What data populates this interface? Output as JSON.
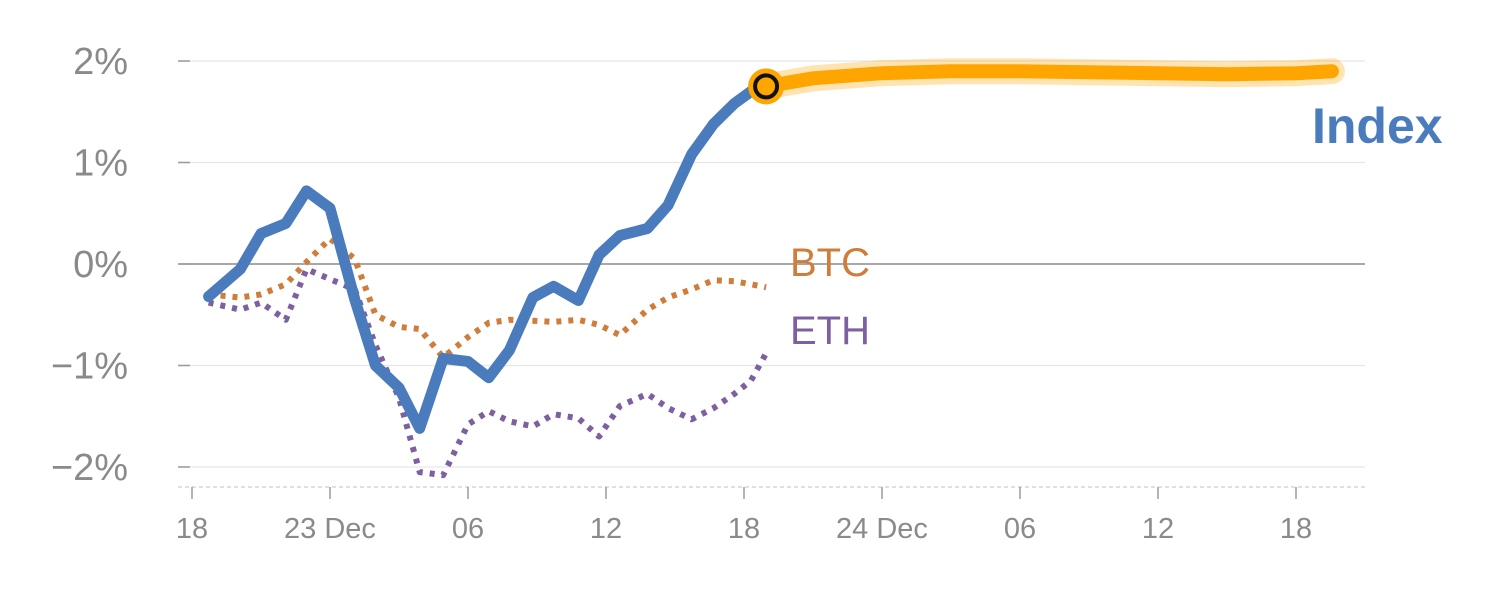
{
  "chart_data": {
    "type": "line",
    "ylim": [
      -2.2,
      2.2
    ],
    "yticks": [
      {
        "value": 2,
        "label": "2%"
      },
      {
        "value": 1,
        "label": "1%"
      },
      {
        "value": 0,
        "label": "0%"
      },
      {
        "value": -1,
        "label": "−1%"
      },
      {
        "value": -2,
        "label": "−2%"
      }
    ],
    "x_range": [
      0,
      85
    ],
    "xticks": [
      {
        "value": 0,
        "label": "18"
      },
      {
        "value": 10,
        "label": "23 Dec"
      },
      {
        "value": 20,
        "label": "06"
      },
      {
        "value": 30,
        "label": "12"
      },
      {
        "value": 40,
        "label": "18"
      },
      {
        "value": 50,
        "label": "24 Dec"
      },
      {
        "value": 60,
        "label": "06"
      },
      {
        "value": 70,
        "label": "12"
      },
      {
        "value": 80,
        "label": "18"
      }
    ],
    "grid": true,
    "series": [
      {
        "name": "Index",
        "color": "#4a7bbd",
        "style": "solid",
        "x": [
          1.2,
          3.5,
          5,
          6.8,
          8.3,
          10,
          11.8,
          13.3,
          15,
          16.5,
          18.2,
          20,
          21.5,
          23,
          24.7,
          26.2,
          28,
          29.5,
          31,
          33,
          34.5,
          36.2,
          37.8,
          39.3,
          40.5,
          41.6
        ],
        "y": [
          -0.32,
          -0.05,
          0.3,
          0.4,
          0.72,
          0.55,
          -0.35,
          -1.0,
          -1.22,
          -1.62,
          -0.93,
          -0.96,
          -1.12,
          -0.85,
          -0.33,
          -0.22,
          -0.36,
          0.09,
          0.28,
          0.35,
          0.58,
          1.08,
          1.38,
          1.58,
          1.7,
          1.75
        ]
      },
      {
        "name": "BTC",
        "color": "#d07c3a",
        "style": "dotted",
        "x": [
          1.2,
          3.5,
          5,
          6.8,
          8.3,
          10,
          11.8,
          13.3,
          15,
          16.5,
          18.2,
          20,
          21.5,
          23,
          24.7,
          26.2,
          28,
          29.5,
          31,
          33,
          34.5,
          36.2,
          37.8,
          39.3,
          40.5,
          41.6
        ],
        "y": [
          -0.3,
          -0.33,
          -0.3,
          -0.2,
          0.02,
          0.25,
          0.05,
          -0.5,
          -0.62,
          -0.64,
          -0.92,
          -0.72,
          -0.58,
          -0.55,
          -0.56,
          -0.57,
          -0.55,
          -0.6,
          -0.7,
          -0.45,
          -0.33,
          -0.25,
          -0.16,
          -0.17,
          -0.2,
          -0.23
        ]
      },
      {
        "name": "ETH",
        "color": "#7e5fa0",
        "style": "dotted",
        "x": [
          1.2,
          3.5,
          5,
          6.8,
          8.3,
          10,
          11.8,
          13.3,
          15,
          16.5,
          18.2,
          20,
          21.5,
          23,
          24.7,
          26.2,
          28,
          29.5,
          31,
          33,
          34.5,
          36.2,
          37.8,
          39.3,
          40.5,
          41.6
        ],
        "y": [
          -0.38,
          -0.45,
          -0.38,
          -0.55,
          -0.05,
          -0.15,
          -0.25,
          -0.8,
          -1.32,
          -2.05,
          -2.08,
          -1.58,
          -1.45,
          -1.55,
          -1.6,
          -1.48,
          -1.52,
          -1.7,
          -1.4,
          -1.28,
          -1.42,
          -1.53,
          -1.42,
          -1.28,
          -1.15,
          -0.88
        ]
      },
      {
        "name": "Index",
        "color": "#ffa500",
        "style": "forecast",
        "x": [
          41.6,
          45,
          50,
          55,
          60,
          65,
          70,
          75,
          80,
          82.6
        ],
        "y": [
          1.75,
          1.83,
          1.88,
          1.9,
          1.9,
          1.89,
          1.88,
          1.87,
          1.88,
          1.9
        ]
      }
    ],
    "marker": {
      "x": 41.6,
      "y": 1.75
    },
    "labels": {
      "index": "Index",
      "btc": "BTC",
      "eth": "ETH"
    }
  }
}
